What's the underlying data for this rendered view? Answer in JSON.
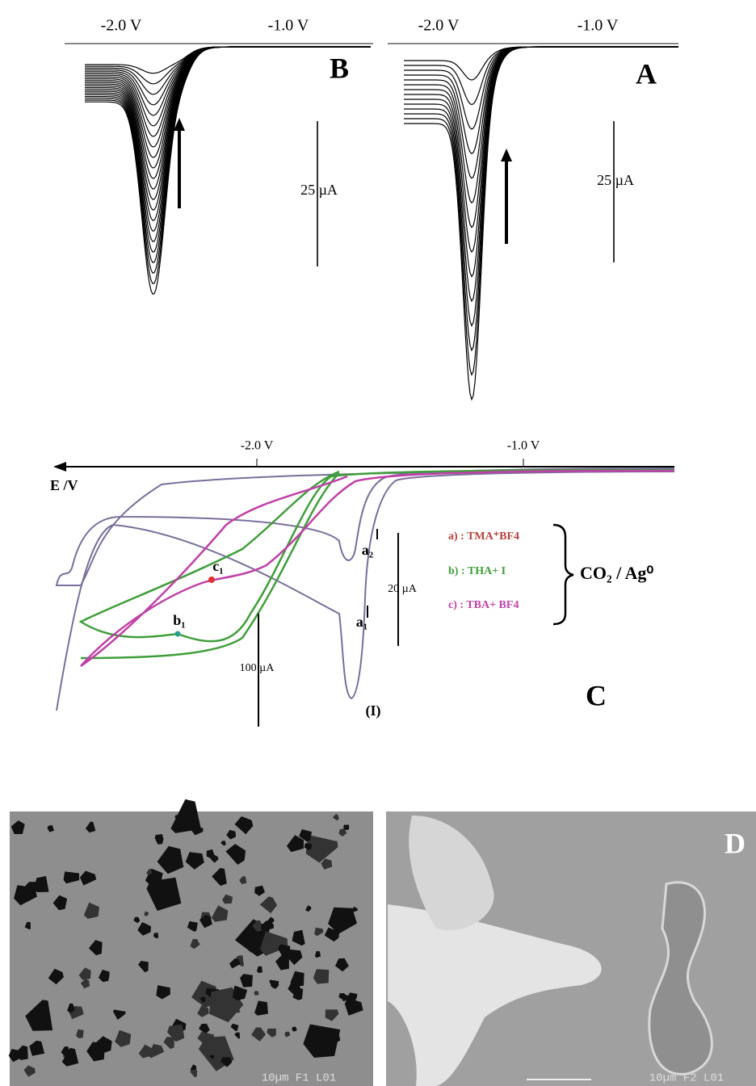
{
  "panel_B": {
    "tick_labels": [
      "-2.0 V",
      "-1.0 V"
    ],
    "letter": "B",
    "scale_label": "25 µA"
  },
  "panel_A": {
    "tick_labels": [
      "-2.0 V",
      "-1.0 V"
    ],
    "letter": "A",
    "scale_label": "25 µA"
  },
  "panel_C": {
    "axis_label": "E /V",
    "tick_labels": [
      "-2.0 V",
      "-1.0 V"
    ],
    "legend": [
      {
        "label": "a) : TMA⁺BF4",
        "color": "#b5433a"
      },
      {
        "label": "b) : THA+ I",
        "color": "#3f9e3a"
      },
      {
        "label": "c) : TBA+ BF4",
        "color": "#c040a8"
      }
    ],
    "legend_group": "CO₂ / Ag⁰",
    "annotations": [
      "a₂",
      "a₁",
      "c₁",
      "b₁",
      "(I)"
    ],
    "scale_labels": [
      "20 µA",
      "100 µA"
    ],
    "letter": "C"
  },
  "panel_D": {
    "captions": [
      "10µm F1 L01",
      "10µm F2 L01"
    ],
    "letter": "D"
  }
}
